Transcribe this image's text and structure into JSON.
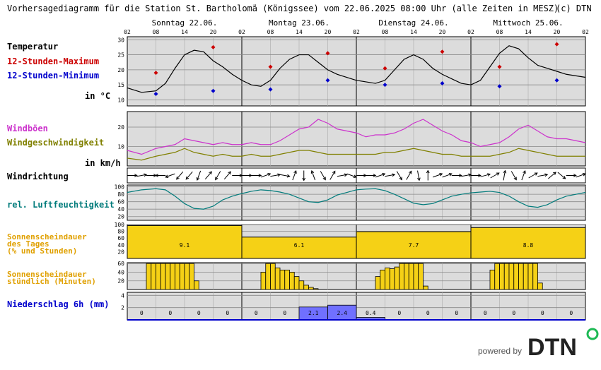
{
  "title": "Vorhersagediagramm für die Station St. Bartholomä (Königssee) vom 22.06.2025 08:00 Uhr (alle Zeiten in MESZ)",
  "copyright": "(c) DTN",
  "days": [
    "Sonntag 22.06.",
    "Montag 23.06.",
    "Dienstag 24.06.",
    "Mittwoch 25.06."
  ],
  "hour_ticks": [
    "02",
    "08",
    "14",
    "20",
    "02",
    "08",
    "14",
    "20",
    "02",
    "08",
    "14",
    "20",
    "02",
    "08",
    "14",
    "20",
    "02"
  ],
  "branding": {
    "text": "powered by",
    "logo": "DTN",
    "logo_color": "#222222",
    "accent_color": "#1db954"
  },
  "colors": {
    "plot_bg": "#dcdcdc",
    "grid": "#888888",
    "temp_line": "#000000",
    "tmax": "#cc0000",
    "tmin": "#0000cc",
    "gust": "#cc33cc",
    "wind": "#808000",
    "humidity": "#007b7b",
    "sun": "#f5d116",
    "precip": "#7070ff"
  },
  "labels": {
    "temperatur": "Temperatur",
    "tmax": "12-Stunden-Maximum",
    "tmin": "12-Stunden-Minimum",
    "temp_unit": "in °C",
    "gust": "Windböen",
    "wind": "Windgeschwindigkeit",
    "wind_unit": "in km/h",
    "windrichtung": "Windrichtung",
    "humidity": "rel. Luftfeuchtigkeit",
    "sun_day_1": "Sonnenscheindauer",
    "sun_day_2": "des Tages",
    "sun_day_3": "(% und Stunden)",
    "sun_hour_1": "Sonnenscheindauer",
    "sun_hour_2": "stündlich (Minuten)",
    "precip": "Niederschlag 6h (mm)"
  },
  "chart_data": [
    {
      "type": "line",
      "panel": "temperature",
      "ylim": [
        8,
        31
      ],
      "yticks": [
        10,
        15,
        20,
        25,
        30
      ],
      "x_hours": [
        0,
        3,
        6,
        8,
        10,
        12,
        14,
        16,
        18,
        20,
        22,
        24,
        26,
        28,
        30,
        32,
        34,
        36,
        38,
        40,
        42,
        44,
        46,
        48,
        50,
        52,
        54,
        56,
        58,
        60,
        62,
        64,
        66,
        68,
        70,
        72,
        74,
        76,
        78,
        80,
        82,
        84,
        86,
        88,
        90,
        92,
        94,
        96
      ],
      "series": [
        {
          "values": [
            14.0,
            12.5,
            13.0,
            15.5,
            20.5,
            25.0,
            26.5,
            26.0,
            23.0,
            21.0,
            18.5,
            16.5,
            15.0,
            14.5,
            16.5,
            20.5,
            23.5,
            25.0,
            25.0,
            22.5,
            20.0,
            18.5,
            17.5,
            16.5,
            16.0,
            15.5,
            16.5,
            20.0,
            23.5,
            25.0,
            23.5,
            20.5,
            18.5,
            17.0,
            15.5,
            15.0,
            16.5,
            21.0,
            25.5,
            28.0,
            27.0,
            24.0,
            21.5,
            20.5,
            19.5,
            18.5,
            18.0,
            17.5
          ]
        }
      ],
      "markers": [
        {
          "name": "12-Stunden-Maximum",
          "points": [
            [
              6,
              19.0
            ],
            [
              18,
              27.5
            ],
            [
              30,
              21.0
            ],
            [
              42,
              25.5
            ],
            [
              54,
              20.5
            ],
            [
              66,
              26.0
            ],
            [
              78,
              21.0
            ],
            [
              90,
              28.5
            ]
          ]
        },
        {
          "name": "12-Stunden-Minimum",
          "points": [
            [
              6,
              12.0
            ],
            [
              18,
              13.0
            ],
            [
              30,
              13.5
            ],
            [
              42,
              16.5
            ],
            [
              54,
              15.0
            ],
            [
              66,
              15.5
            ],
            [
              78,
              14.5
            ],
            [
              90,
              16.5
            ]
          ]
        }
      ]
    },
    {
      "type": "line",
      "panel": "wind",
      "ylim": [
        0,
        28
      ],
      "yticks": [
        10,
        20
      ],
      "x_hours": [
        0,
        3,
        6,
        8,
        10,
        12,
        14,
        16,
        18,
        20,
        22,
        24,
        26,
        28,
        30,
        32,
        34,
        36,
        38,
        40,
        42,
        44,
        46,
        48,
        50,
        52,
        54,
        56,
        58,
        60,
        62,
        64,
        66,
        68,
        70,
        72,
        74,
        76,
        78,
        80,
        82,
        84,
        86,
        88,
        90,
        92,
        94,
        96
      ],
      "series": [
        {
          "name": "Windböen",
          "values": [
            8,
            6,
            9,
            10,
            11,
            14,
            13,
            12,
            11,
            12,
            11,
            11,
            12,
            11,
            11,
            13,
            16,
            19,
            20,
            24,
            22,
            19,
            18,
            17,
            15,
            16,
            16,
            17,
            19,
            22,
            24,
            21,
            18,
            16,
            13,
            12,
            10,
            11,
            12,
            15,
            19,
            21,
            18,
            15,
            14,
            14,
            13,
            12
          ]
        },
        {
          "name": "Windgeschwindigkeit",
          "values": [
            4,
            3,
            5,
            6,
            7,
            9,
            7,
            6,
            5,
            6,
            5,
            5,
            6,
            5,
            5,
            6,
            7,
            8,
            8,
            7,
            6,
            6,
            6,
            6,
            6,
            6,
            7,
            7,
            8,
            9,
            8,
            7,
            6,
            6,
            5,
            5,
            5,
            5,
            6,
            7,
            9,
            8,
            7,
            6,
            5,
            5,
            5,
            5
          ]
        }
      ]
    },
    {
      "type": "line",
      "panel": "wind_direction",
      "x_hours": [
        0,
        2,
        4,
        6,
        8,
        10,
        12,
        14,
        16,
        18,
        20,
        22,
        24,
        26,
        28,
        30,
        32,
        34,
        36,
        38,
        40,
        42,
        44,
        46,
        48,
        50,
        52,
        54,
        56,
        58,
        60,
        62,
        64,
        66,
        68,
        70,
        72,
        74,
        76,
        78,
        80,
        82,
        84,
        86,
        88,
        90,
        92,
        94
      ],
      "series": [
        {
          "name": "Windrichtung (Pfeilwinkel Grad)",
          "values": [
            0,
            10,
            0,
            180,
            200,
            230,
            230,
            250,
            50,
            240,
            50,
            0,
            0,
            0,
            20,
            10,
            350,
            70,
            270,
            110,
            300,
            60,
            10,
            340,
            0,
            0,
            20,
            10,
            300,
            60,
            280,
            90,
            20,
            20,
            0,
            10,
            0,
            15,
            30,
            80,
            300,
            70,
            30,
            10,
            40,
            320,
            0,
            20
          ]
        }
      ]
    },
    {
      "type": "line",
      "panel": "humidity",
      "ylim": [
        10,
        105
      ],
      "yticks": [
        20,
        40,
        60,
        80,
        100
      ],
      "x_hours": [
        0,
        3,
        6,
        8,
        10,
        12,
        14,
        16,
        18,
        20,
        22,
        24,
        26,
        28,
        30,
        32,
        34,
        36,
        38,
        40,
        42,
        44,
        46,
        48,
        50,
        52,
        54,
        56,
        58,
        60,
        62,
        64,
        66,
        68,
        70,
        72,
        74,
        76,
        78,
        80,
        82,
        84,
        86,
        88,
        90,
        92,
        94,
        96
      ],
      "series": [
        {
          "name": "rel. Luftfeuchtigkeit",
          "values": [
            85,
            92,
            95,
            92,
            75,
            55,
            42,
            40,
            48,
            65,
            75,
            82,
            88,
            92,
            90,
            86,
            80,
            70,
            60,
            58,
            65,
            78,
            85,
            92,
            94,
            95,
            90,
            80,
            68,
            56,
            52,
            55,
            65,
            75,
            80,
            84,
            86,
            88,
            85,
            75,
            60,
            48,
            45,
            52,
            65,
            75,
            80,
            85
          ]
        }
      ]
    },
    {
      "type": "bar",
      "panel": "sunshine_daily",
      "ylim": [
        0,
        100
      ],
      "yticks": [
        20,
        40,
        60,
        80,
        100
      ],
      "categories": [
        "Sonntag 22.06.",
        "Montag 23.06.",
        "Dienstag 24.06.",
        "Mittwoch 25.06."
      ],
      "values": [
        97,
        63,
        79,
        91
      ],
      "bar_labels": [
        "9.1",
        "6.1",
        "7.7",
        "8.8"
      ]
    },
    {
      "type": "bar",
      "panel": "sunshine_hourly",
      "ylim": [
        0,
        62
      ],
      "yticks": [
        20,
        40,
        60
      ],
      "x_hours": [
        4,
        5,
        6,
        7,
        8,
        9,
        10,
        11,
        12,
        13,
        14,
        28,
        29,
        30,
        31,
        32,
        33,
        34,
        35,
        36,
        37,
        38,
        39,
        52,
        53,
        54,
        55,
        56,
        57,
        58,
        59,
        60,
        61,
        62,
        76,
        77,
        78,
        79,
        80,
        81,
        82,
        83,
        84,
        85,
        86
      ],
      "values": [
        60,
        60,
        60,
        60,
        60,
        60,
        60,
        60,
        60,
        60,
        20,
        40,
        60,
        60,
        50,
        45,
        45,
        40,
        30,
        20,
        10,
        5,
        2,
        30,
        45,
        50,
        48,
        52,
        60,
        60,
        60,
        60,
        60,
        8,
        45,
        60,
        60,
        60,
        60,
        60,
        60,
        60,
        60,
        60,
        15
      ]
    },
    {
      "type": "bar",
      "panel": "precip_6h",
      "ylim": [
        0,
        4.5
      ],
      "yticks": [
        2,
        4
      ],
      "x_start_hours": [
        0,
        6,
        12,
        18,
        24,
        30,
        36,
        42,
        48,
        54,
        60,
        66,
        72,
        78,
        84,
        90
      ],
      "values": [
        0,
        0,
        0,
        0,
        0,
        0,
        2.1,
        2.4,
        0.4,
        0,
        0,
        0,
        0,
        0,
        0,
        0
      ],
      "bar_labels": [
        "0",
        "0",
        "0",
        "0",
        "0",
        "0",
        "2.1",
        "2.4",
        "0.4",
        "0",
        "0",
        "0",
        "0",
        "0",
        "0",
        "0"
      ]
    }
  ]
}
